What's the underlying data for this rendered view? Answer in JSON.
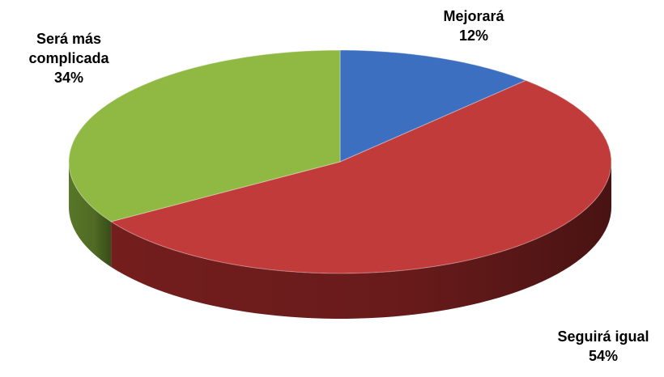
{
  "chart_data": {
    "type": "pie3d",
    "categories": [
      "Mejorará",
      "Seguirá igual",
      "Será más complicada"
    ],
    "values": [
      12,
      54,
      34
    ],
    "value_labels": [
      "12%",
      "54%",
      "34%"
    ],
    "colors": [
      "#3d6fc0",
      "#c23b3b",
      "#8fb943"
    ],
    "side_colors": [
      "#27497f",
      "#7a1f1f",
      "#5d7d2a"
    ]
  }
}
